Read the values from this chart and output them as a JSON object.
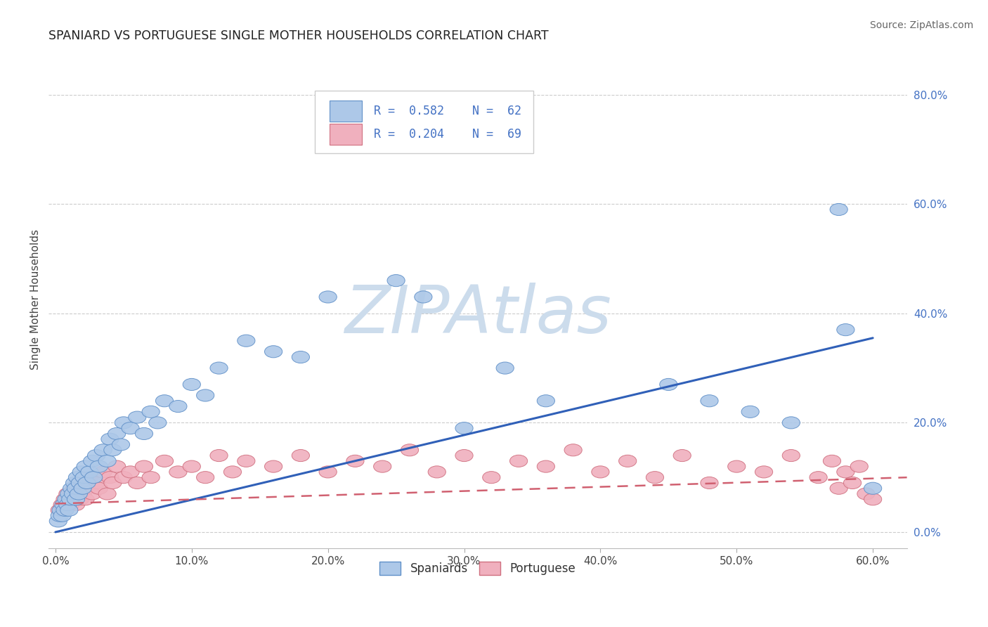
{
  "title": "SPANIARD VS PORTUGUESE SINGLE MOTHER HOUSEHOLDS CORRELATION CHART",
  "source": "Source: ZipAtlas.com",
  "xlabel_ticks": [
    "0.0%",
    "10.0%",
    "20.0%",
    "30.0%",
    "40.0%",
    "50.0%",
    "60.0%"
  ],
  "ylabel_ticks": [
    "0.0%",
    "20.0%",
    "40.0%",
    "60.0%",
    "80.0%"
  ],
  "xlim": [
    -0.005,
    0.625
  ],
  "ylim": [
    -0.03,
    0.88
  ],
  "spaniards_color": "#adc8e8",
  "portuguese_color": "#f0b0be",
  "spaniards_edge_color": "#6090c8",
  "portuguese_edge_color": "#d07080",
  "spaniards_line_color": "#3060b8",
  "portuguese_line_color": "#d06070",
  "legend_text_color": "#4472c4",
  "ytick_color": "#4472c4",
  "watermark": "ZIPAtlas",
  "watermark_color": "#ccdcec",
  "background_color": "#ffffff",
  "spaniards_x": [
    0.002,
    0.003,
    0.004,
    0.005,
    0.006,
    0.007,
    0.008,
    0.009,
    0.01,
    0.01,
    0.011,
    0.012,
    0.013,
    0.014,
    0.015,
    0.015,
    0.016,
    0.017,
    0.018,
    0.019,
    0.02,
    0.021,
    0.022,
    0.023,
    0.025,
    0.027,
    0.028,
    0.03,
    0.032,
    0.035,
    0.038,
    0.04,
    0.042,
    0.045,
    0.048,
    0.05,
    0.055,
    0.06,
    0.065,
    0.07,
    0.075,
    0.08,
    0.09,
    0.1,
    0.11,
    0.12,
    0.14,
    0.16,
    0.18,
    0.2,
    0.25,
    0.27,
    0.3,
    0.33,
    0.36,
    0.45,
    0.48,
    0.51,
    0.54,
    0.575,
    0.58,
    0.6
  ],
  "spaniards_y": [
    0.02,
    0.03,
    0.04,
    0.03,
    0.05,
    0.04,
    0.06,
    0.05,
    0.07,
    0.04,
    0.06,
    0.08,
    0.07,
    0.09,
    0.06,
    0.08,
    0.1,
    0.07,
    0.09,
    0.11,
    0.08,
    0.1,
    0.12,
    0.09,
    0.11,
    0.13,
    0.1,
    0.14,
    0.12,
    0.15,
    0.13,
    0.17,
    0.15,
    0.18,
    0.16,
    0.2,
    0.19,
    0.21,
    0.18,
    0.22,
    0.2,
    0.24,
    0.23,
    0.27,
    0.25,
    0.3,
    0.35,
    0.33,
    0.32,
    0.43,
    0.46,
    0.43,
    0.19,
    0.3,
    0.24,
    0.27,
    0.24,
    0.22,
    0.2,
    0.59,
    0.37,
    0.08
  ],
  "portuguese_x": [
    0.003,
    0.005,
    0.006,
    0.007,
    0.008,
    0.009,
    0.01,
    0.011,
    0.012,
    0.013,
    0.014,
    0.015,
    0.016,
    0.017,
    0.018,
    0.019,
    0.02,
    0.021,
    0.022,
    0.023,
    0.025,
    0.027,
    0.03,
    0.032,
    0.035,
    0.038,
    0.04,
    0.042,
    0.045,
    0.05,
    0.055,
    0.06,
    0.065,
    0.07,
    0.08,
    0.09,
    0.1,
    0.11,
    0.12,
    0.13,
    0.14,
    0.16,
    0.18,
    0.2,
    0.22,
    0.24,
    0.26,
    0.28,
    0.3,
    0.32,
    0.34,
    0.36,
    0.38,
    0.4,
    0.42,
    0.44,
    0.46,
    0.48,
    0.5,
    0.52,
    0.54,
    0.56,
    0.57,
    0.575,
    0.58,
    0.585,
    0.59,
    0.595,
    0.6
  ],
  "portuguese_y": [
    0.04,
    0.05,
    0.04,
    0.06,
    0.05,
    0.07,
    0.06,
    0.05,
    0.07,
    0.06,
    0.08,
    0.05,
    0.07,
    0.09,
    0.06,
    0.08,
    0.07,
    0.09,
    0.06,
    0.08,
    0.1,
    0.07,
    0.09,
    0.08,
    0.11,
    0.07,
    0.1,
    0.09,
    0.12,
    0.1,
    0.11,
    0.09,
    0.12,
    0.1,
    0.13,
    0.11,
    0.12,
    0.1,
    0.14,
    0.11,
    0.13,
    0.12,
    0.14,
    0.11,
    0.13,
    0.12,
    0.15,
    0.11,
    0.14,
    0.1,
    0.13,
    0.12,
    0.15,
    0.11,
    0.13,
    0.1,
    0.14,
    0.09,
    0.12,
    0.11,
    0.14,
    0.1,
    0.13,
    0.08,
    0.11,
    0.09,
    0.12,
    0.07,
    0.06
  ],
  "sp_line_x0": 0.0,
  "sp_line_x1": 0.6,
  "sp_line_y0": 0.0,
  "sp_line_y1": 0.355,
  "pt_line_x0": 0.0,
  "pt_line_x1": 0.625,
  "pt_line_y0": 0.052,
  "pt_line_y1": 0.1
}
